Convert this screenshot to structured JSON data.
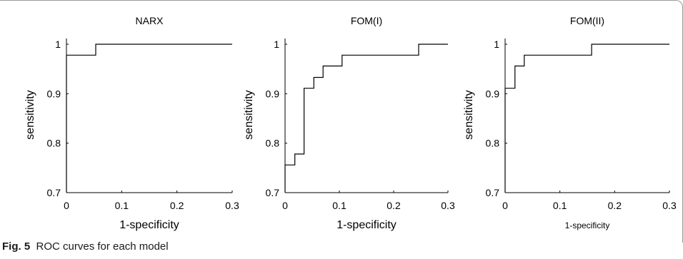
{
  "figure_caption": {
    "label": "Fig. 5",
    "text": "ROC curves for each model"
  },
  "chart_data": [
    {
      "type": "line",
      "title": "NARX",
      "xlabel": "1-specificity",
      "ylabel": "sensitivity",
      "xlim": [
        0,
        0.3
      ],
      "ylim": [
        0.7,
        1.0
      ],
      "xticks": [
        "0",
        "0.1",
        "0.2",
        "0.3"
      ],
      "yticks": [
        "0.7",
        "0.8",
        "0.9",
        "1"
      ],
      "grid": false,
      "series": [
        {
          "x": [
            0,
            0,
            0.053,
            0.053,
            0.3
          ],
          "y": [
            0.7,
            0.978,
            0.978,
            1.0,
            1.0
          ]
        }
      ]
    },
    {
      "type": "line",
      "title": "FOM(I)",
      "xlabel": "1-specificity",
      "ylabel": "sensitivity",
      "xlim": [
        0,
        0.3
      ],
      "ylim": [
        0.7,
        1.0
      ],
      "xticks": [
        "0",
        "0.1",
        "0.2",
        "0.3"
      ],
      "yticks": [
        "0.7",
        "0.8",
        "0.9",
        "1"
      ],
      "grid": false,
      "series": [
        {
          "x": [
            0,
            0,
            0.018,
            0.018,
            0.035,
            0.035,
            0.053,
            0.053,
            0.07,
            0.07,
            0.105,
            0.105,
            0.246,
            0.246,
            0.3
          ],
          "y": [
            0.7,
            0.756,
            0.756,
            0.778,
            0.778,
            0.911,
            0.911,
            0.933,
            0.933,
            0.956,
            0.956,
            0.978,
            0.978,
            1.0,
            1.0
          ]
        }
      ]
    },
    {
      "type": "line",
      "title": "FOM(II)",
      "xlabel": "1-specificity",
      "ylabel": "sensitivity",
      "xlim": [
        0,
        0.3
      ],
      "ylim": [
        0.7,
        1.0
      ],
      "xticks": [
        "0",
        "0.1",
        "0.2",
        "0.3"
      ],
      "yticks": [
        "0.7",
        "0.8",
        "0.9",
        "1"
      ],
      "grid": false,
      "series": [
        {
          "x": [
            0,
            0,
            0.018,
            0.018,
            0.035,
            0.035,
            0.158,
            0.158,
            0.3
          ],
          "y": [
            0.7,
            0.911,
            0.911,
            0.956,
            0.956,
            0.978,
            0.978,
            1.0,
            1.0
          ]
        }
      ]
    }
  ]
}
